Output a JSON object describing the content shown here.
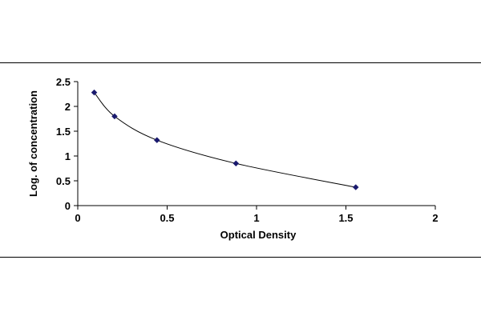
{
  "chart_data": {
    "type": "scatter",
    "title": "",
    "xlabel": "Optical Density",
    "ylabel": "Log. of concentration",
    "xlim": [
      0,
      2
    ],
    "ylim": [
      0,
      2.5
    ],
    "xticks": [
      0,
      0.5,
      1,
      1.5,
      2
    ],
    "xtick_labels": [
      "0",
      "0.5",
      "1",
      "1.5",
      "2"
    ],
    "yticks": [
      0,
      0.5,
      1,
      1.5,
      2,
      2.5
    ],
    "ytick_labels": [
      "0",
      "0.5",
      "1",
      "1.5",
      "2",
      "2.5"
    ],
    "grid": false,
    "legend": "none",
    "series": [
      {
        "marker": "diamond",
        "color": "#1a1a6e",
        "line": "smooth",
        "x": [
          0.092,
          0.206,
          0.443,
          0.885,
          1.555
        ],
        "y": [
          2.28,
          1.8,
          1.32,
          0.85,
          0.37
        ]
      }
    ]
  }
}
